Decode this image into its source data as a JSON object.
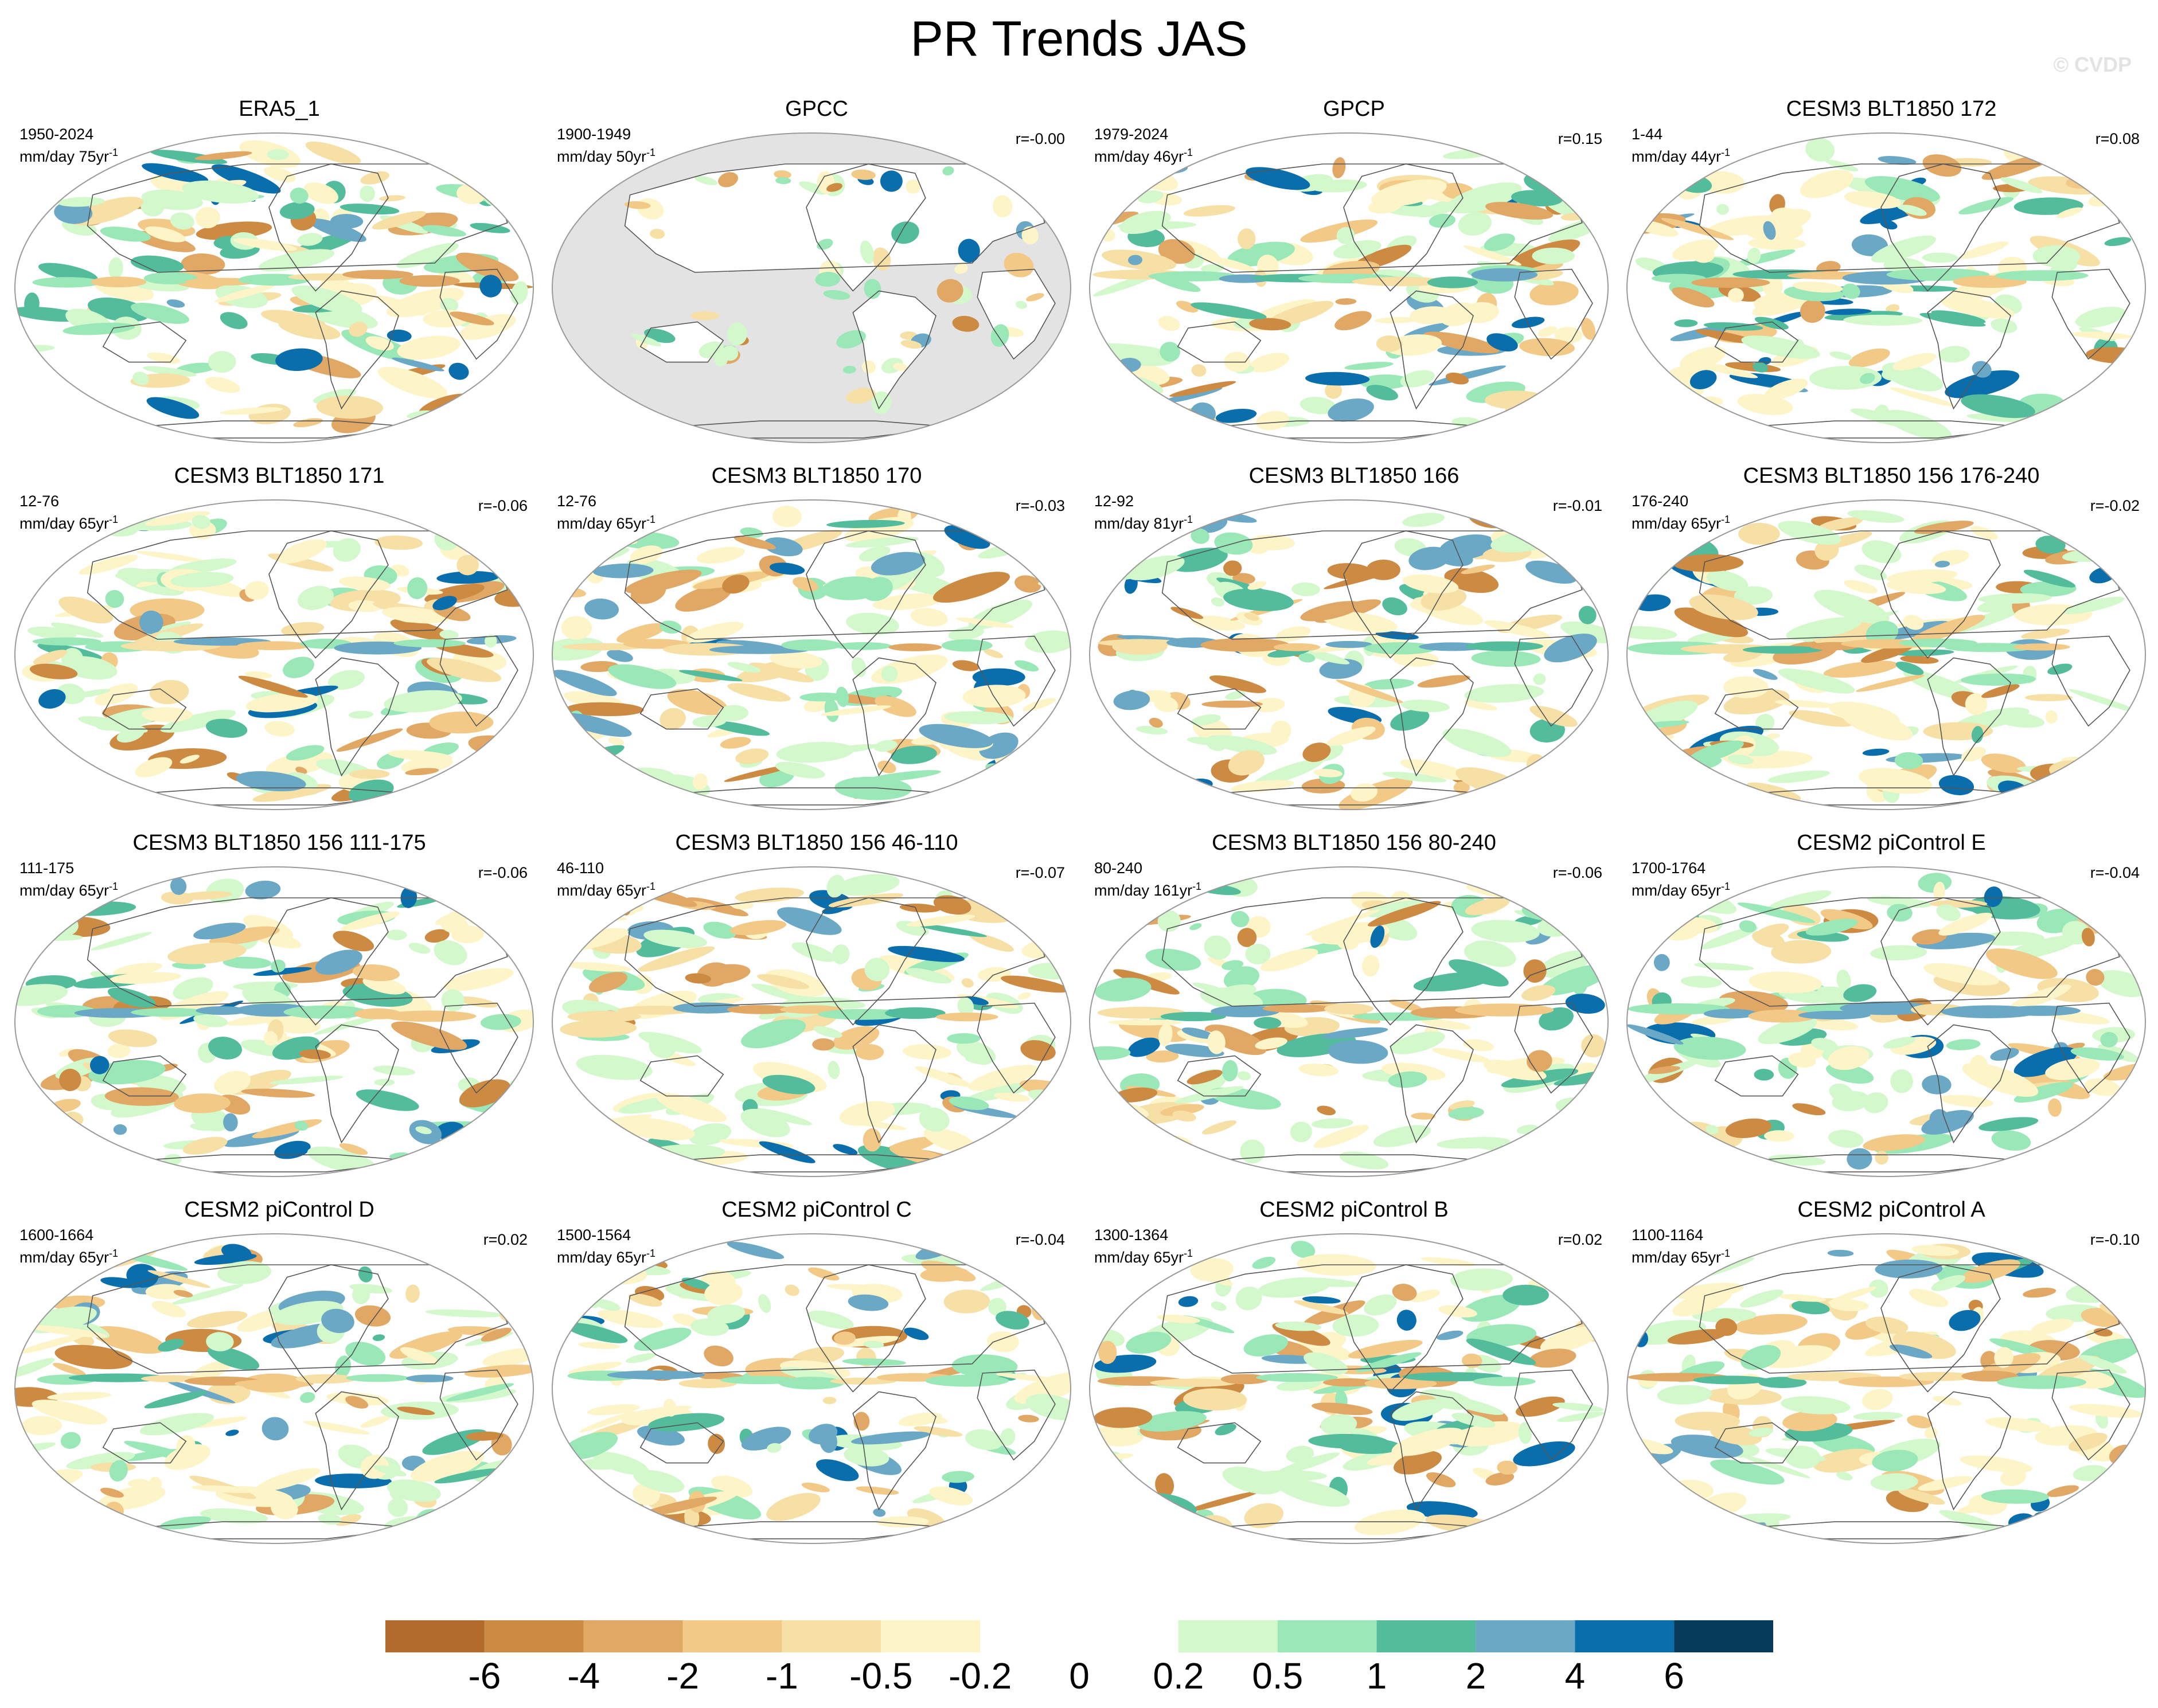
{
  "title": "PR Trends JAS",
  "watermark": "© CVDP",
  "panels": [
    {
      "title": "ERA5_1",
      "period": "1950-2024",
      "units": "mm/day 75yr",
      "r": "",
      "masked_land": false,
      "seed": 11
    },
    {
      "title": "GPCC",
      "period": "1900-1949",
      "units": "mm/day 50yr",
      "r": "r=-0.00",
      "masked_land": true,
      "seed": 12
    },
    {
      "title": "GPCP",
      "period": "1979-2024",
      "units": "mm/day 46yr",
      "r": "r=0.15",
      "masked_land": false,
      "seed": 13
    },
    {
      "title": "CESM3 BLT1850 172",
      "period": "1-44",
      "units": "mm/day 44yr",
      "r": "r=0.08",
      "masked_land": false,
      "seed": 14
    },
    {
      "title": "CESM3 BLT1850 171",
      "period": "12-76",
      "units": "mm/day 65yr",
      "r": "r=-0.06",
      "masked_land": false,
      "seed": 15
    },
    {
      "title": "CESM3 BLT1850 170",
      "period": "12-76",
      "units": "mm/day 65yr",
      "r": "r=-0.03",
      "masked_land": false,
      "seed": 16
    },
    {
      "title": "CESM3 BLT1850 166",
      "period": "12-92",
      "units": "mm/day 81yr",
      "r": "r=-0.01",
      "masked_land": false,
      "seed": 17
    },
    {
      "title": "CESM3 BLT1850 156 176-240",
      "period": "176-240",
      "units": "mm/day 65yr",
      "r": "r=-0.02",
      "masked_land": false,
      "seed": 18
    },
    {
      "title": "CESM3 BLT1850 156 111-175",
      "period": "111-175",
      "units": "mm/day 65yr",
      "r": "r=-0.06",
      "masked_land": false,
      "seed": 19
    },
    {
      "title": "CESM3 BLT1850 156 46-110",
      "period": "46-110",
      "units": "mm/day 65yr",
      "r": "r=-0.07",
      "masked_land": false,
      "seed": 20
    },
    {
      "title": "CESM3 BLT1850 156 80-240",
      "period": "80-240",
      "units": "mm/day 161yr",
      "r": "r=-0.06",
      "masked_land": false,
      "seed": 21
    },
    {
      "title": "CESM2 piControl E",
      "period": "1700-1764",
      "units": "mm/day 65yr",
      "r": "r=-0.04",
      "masked_land": false,
      "seed": 22
    },
    {
      "title": "CESM2 piControl D",
      "period": "1600-1664",
      "units": "mm/day 65yr",
      "r": "r=0.02",
      "masked_land": false,
      "seed": 23
    },
    {
      "title": "CESM2 piControl C",
      "period": "1500-1564",
      "units": "mm/day 65yr",
      "r": "r=-0.04",
      "masked_land": false,
      "seed": 24
    },
    {
      "title": "CESM2 piControl B",
      "period": "1300-1364",
      "units": "mm/day 65yr",
      "r": "r=0.02",
      "masked_land": false,
      "seed": 25
    },
    {
      "title": "CESM2 piControl A",
      "period": "1100-1164",
      "units": "mm/day 65yr",
      "r": "r=-0.10",
      "masked_land": false,
      "seed": 26
    }
  ],
  "colorbar": {
    "colors": [
      "#b26a2d",
      "#cc8a43",
      "#e0a765",
      "#f2c987",
      "#f6e0a6",
      "#fdf4c8",
      "#ffffff",
      "#ffffff",
      "#d2f8cc",
      "#9ae8b8",
      "#52bc9c",
      "#6aa8c6",
      "#0a6eac",
      "#073b5b"
    ],
    "labels": [
      "-6",
      "-4",
      "-2",
      "-1",
      "-0.5",
      "-0.2",
      "0",
      "0.2",
      "0.5",
      "1",
      "2",
      "4",
      "6"
    ]
  },
  "style": {
    "map_outline": "#9a9a9a",
    "coast": "#555555",
    "masked": "#e3e3e3"
  }
}
